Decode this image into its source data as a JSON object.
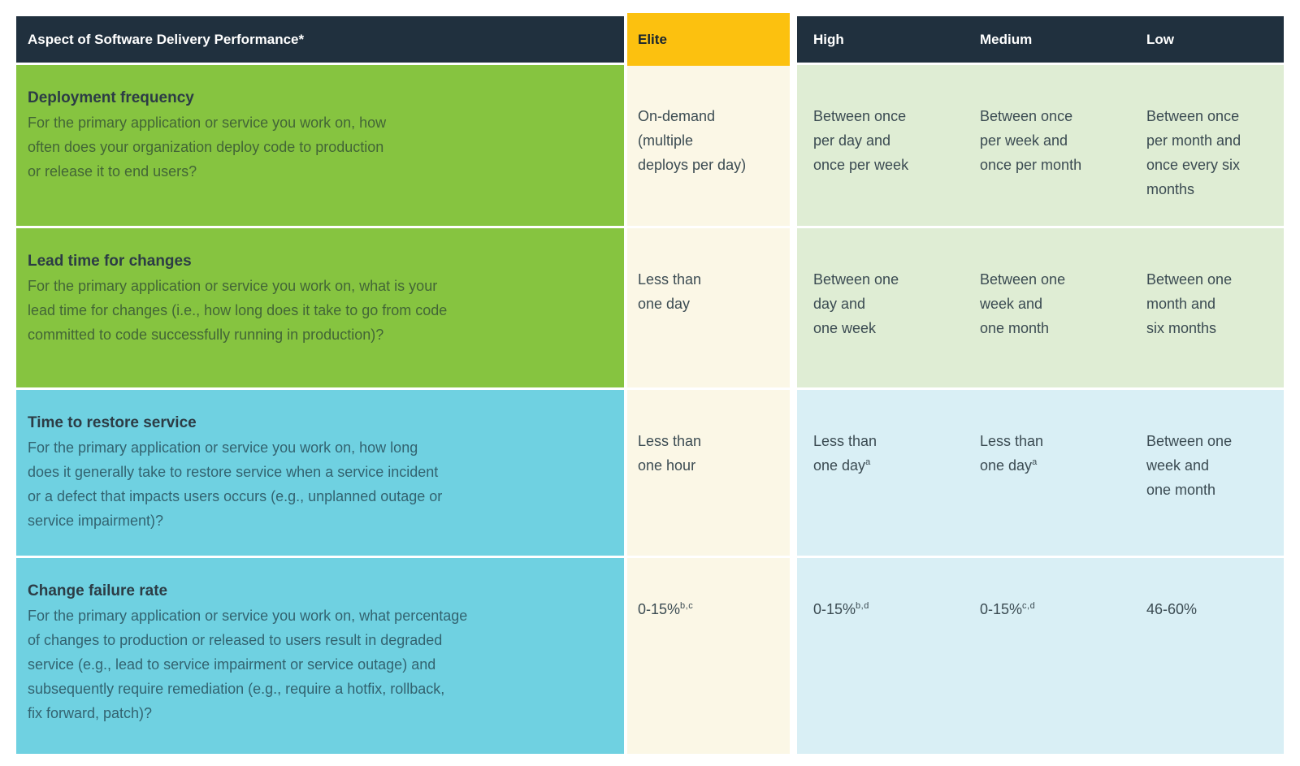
{
  "table": {
    "header": {
      "aspect_label": "Aspect of Software Delivery Performance*",
      "levels": [
        "Elite",
        "High",
        "Medium",
        "Low"
      ]
    },
    "rows": [
      {
        "title": "Deployment frequency",
        "description": "For the primary application or service you work on, how\noften does your organization deploy code to production\nor release it to end users?",
        "values": {
          "elite": {
            "text": "On-demand\n(multiple\ndeploys per day)"
          },
          "high": {
            "text": "Between once\nper day and\nonce per week"
          },
          "medium": {
            "text": "Between once\nper week and\nonce per month"
          },
          "low": {
            "text": "Between once\nper month and\nonce every six\nmonths"
          }
        }
      },
      {
        "title": "Lead time for changes",
        "description": "For the primary application or service you work on, what is your\nlead time for changes (i.e., how long does it take to go from code\ncommitted to code successfully running in production)?",
        "values": {
          "elite": {
            "text": "Less than\none day"
          },
          "high": {
            "text": "Between one\nday and\none week"
          },
          "medium": {
            "text": "Between one\nweek and\none month"
          },
          "low": {
            "text": "Between one\nmonth and\nsix months"
          }
        }
      },
      {
        "title": "Time to restore service",
        "description": "For the primary application or service you work on, how long\ndoes it generally take to restore service when a service incident\nor a defect that impacts users occurs (e.g., unplanned outage or\nservice impairment)?",
        "values": {
          "elite": {
            "text": "Less than\none hour"
          },
          "high": {
            "text": "Less than\none day",
            "sup": "a"
          },
          "medium": {
            "text": "Less than\none day",
            "sup": "a"
          },
          "low": {
            "text": "Between one\nweek and\none month"
          }
        }
      },
      {
        "title": "Change failure rate",
        "description": "For the primary application or service you work on, what percentage\nof changes to production or released to users result in degraded\nservice (e.g., lead to service impairment or service outage) and\nsubsequently require remediation (e.g., require a hotfix, rollback,\nfix forward, patch)?",
        "values": {
          "elite": {
            "text": "0-15%",
            "sup": "b,c"
          },
          "high": {
            "text": "0-15%",
            "sup": "b,d"
          },
          "medium": {
            "text": "0-15%",
            "sup": "c,d"
          },
          "low": {
            "text": "46-60%"
          }
        }
      }
    ]
  },
  "colors": {
    "header_navy": "#20303E",
    "elite_gold": "#FCC10F",
    "question_green": "#86C440",
    "question_cyan": "#6FD1E1",
    "elite_cream": "#FBF7E6",
    "value_light_green": "#DFEDD4",
    "value_light_blue": "#D9EFF5",
    "header_text": "#FFFFFF",
    "body_text": "#3B4B52",
    "page_background": "#FFFFFF"
  }
}
